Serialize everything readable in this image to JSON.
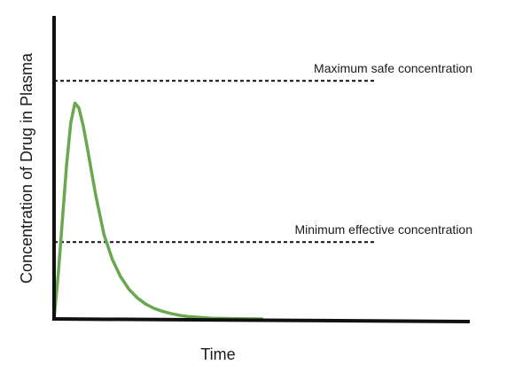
{
  "chart_data": {
    "type": "line",
    "title": "",
    "xlabel": "Time",
    "ylabel": "Concentration of Drug in Plasma",
    "xlim": [
      0,
      100
    ],
    "ylim": [
      0,
      100
    ],
    "grid": false,
    "axis_color": "#111111",
    "series": [
      {
        "color": "#6aa84f",
        "x": [
          0,
          1,
          2,
          3,
          4,
          5,
          6,
          7,
          8,
          10,
          12,
          14,
          16,
          18,
          20,
          22,
          24,
          26,
          28,
          30,
          32,
          35,
          38,
          42,
          46,
          50
        ],
        "y": [
          0,
          18,
          40,
          62,
          79,
          87,
          85,
          78,
          69,
          50,
          34,
          24,
          17,
          12,
          8.5,
          6,
          4.3,
          3.1,
          2.2,
          1.5,
          1.0,
          0.6,
          0.3,
          0.15,
          0.05,
          0
        ]
      }
    ],
    "reference_lines": [
      {
        "label": "Maximum safe concentration",
        "y": 96,
        "style": "dashed",
        "color": "#111111"
      },
      {
        "label": "Minimum effective concentration",
        "y": 31,
        "style": "dashed",
        "color": "#111111"
      }
    ]
  }
}
